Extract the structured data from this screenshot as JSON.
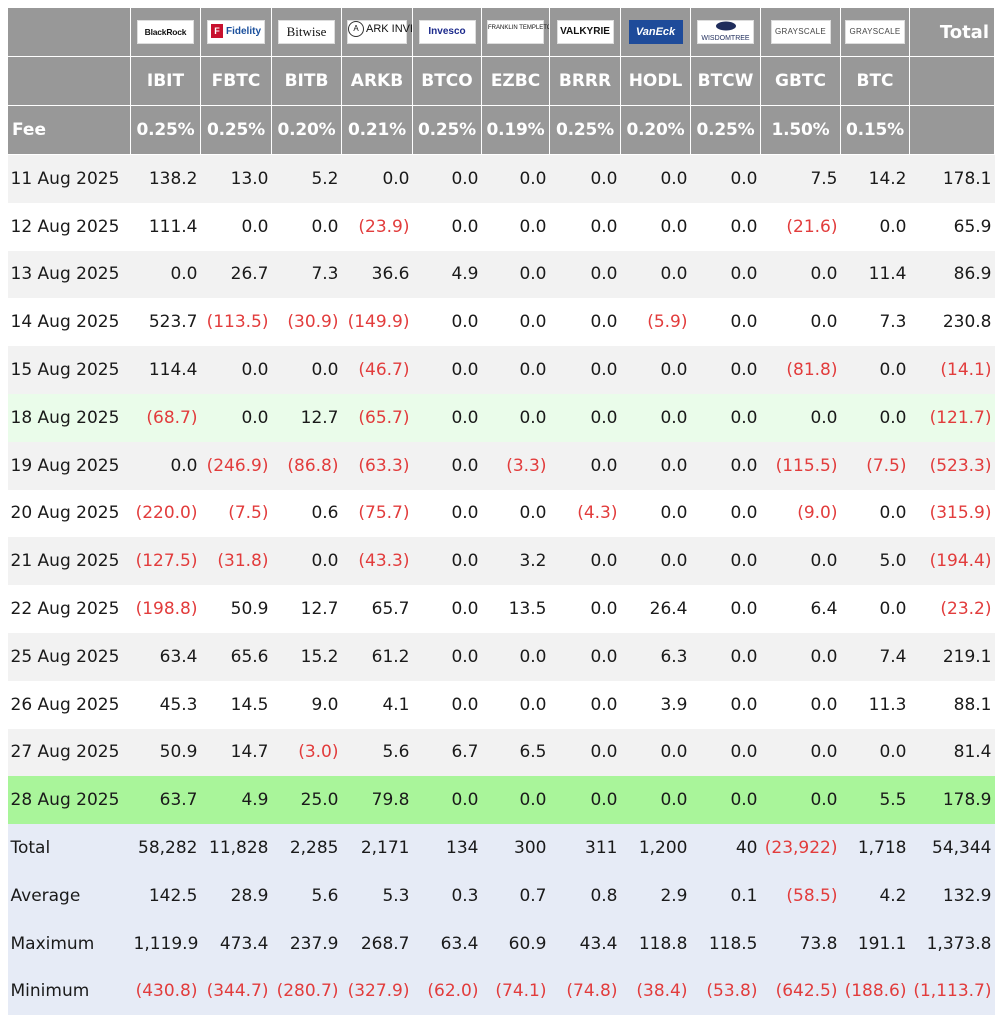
{
  "header": {
    "logos": [
      {
        "name": "BlackRock",
        "icon": "blackrock-logo"
      },
      {
        "name": "Fidelity",
        "icon": "fidelity-logo"
      },
      {
        "name": "Bitwise",
        "icon": "bitwise-logo"
      },
      {
        "name": "ARK INVEST",
        "icon": "ark-invest-logo"
      },
      {
        "name": "Invesco",
        "icon": "invesco-logo"
      },
      {
        "name": "FRANKLIN TEMPLETON",
        "icon": "franklin-templeton-logo"
      },
      {
        "name": "VALKYRIE",
        "icon": "valkyrie-logo"
      },
      {
        "name": "VanEck",
        "icon": "vaneck-logo"
      },
      {
        "name": "WISDOMTREE",
        "icon": "wisdomtree-logo"
      },
      {
        "name": "GRAYSCALE",
        "icon": "grayscale-logo"
      },
      {
        "name": "GRAYSCALE",
        "icon": "grayscale-logo"
      }
    ],
    "total_label": "Total",
    "tickers": [
      "IBIT",
      "FBTC",
      "BITB",
      "ARKB",
      "BTCO",
      "EZBC",
      "BRRR",
      "HODL",
      "BTCW",
      "GBTC",
      "BTC"
    ],
    "fee_label": "Fee",
    "fees": [
      "0.25%",
      "0.25%",
      "0.20%",
      "0.21%",
      "0.25%",
      "0.19%",
      "0.25%",
      "0.20%",
      "0.25%",
      "1.50%",
      "0.15%"
    ]
  },
  "rows": [
    {
      "date": "11 Aug 2025",
      "values": [
        "138.2",
        "13.0",
        "5.2",
        "0.0",
        "0.0",
        "0.0",
        "0.0",
        "0.0",
        "0.0",
        "7.5",
        "14.2"
      ],
      "total": "178.1"
    },
    {
      "date": "12 Aug 2025",
      "values": [
        "111.4",
        "0.0",
        "0.0",
        "(23.9)",
        "0.0",
        "0.0",
        "0.0",
        "0.0",
        "0.0",
        "(21.6)",
        "0.0"
      ],
      "total": "65.9"
    },
    {
      "date": "13 Aug 2025",
      "values": [
        "0.0",
        "26.7",
        "7.3",
        "36.6",
        "4.9",
        "0.0",
        "0.0",
        "0.0",
        "0.0",
        "0.0",
        "11.4"
      ],
      "total": "86.9"
    },
    {
      "date": "14 Aug 2025",
      "values": [
        "523.7",
        "(113.5)",
        "(30.9)",
        "(149.9)",
        "0.0",
        "0.0",
        "0.0",
        "(5.9)",
        "0.0",
        "0.0",
        "7.3"
      ],
      "total": "230.8"
    },
    {
      "date": "15 Aug 2025",
      "values": [
        "114.4",
        "0.0",
        "0.0",
        "(46.7)",
        "0.0",
        "0.0",
        "0.0",
        "0.0",
        "0.0",
        "(81.8)",
        "0.0"
      ],
      "total": "(14.1)"
    },
    {
      "date": "18 Aug 2025",
      "values": [
        "(68.7)",
        "0.0",
        "12.7",
        "(65.7)",
        "0.0",
        "0.0",
        "0.0",
        "0.0",
        "0.0",
        "0.0",
        "0.0"
      ],
      "total": "(121.7)"
    },
    {
      "date": "19 Aug 2025",
      "values": [
        "0.0",
        "(246.9)",
        "(86.8)",
        "(63.3)",
        "0.0",
        "(3.3)",
        "0.0",
        "0.0",
        "0.0",
        "(115.5)",
        "(7.5)"
      ],
      "total": "(523.3)"
    },
    {
      "date": "20 Aug 2025",
      "values": [
        "(220.0)",
        "(7.5)",
        "0.6",
        "(75.7)",
        "0.0",
        "0.0",
        "(4.3)",
        "0.0",
        "0.0",
        "(9.0)",
        "0.0"
      ],
      "total": "(315.9)"
    },
    {
      "date": "21 Aug 2025",
      "values": [
        "(127.5)",
        "(31.8)",
        "0.0",
        "(43.3)",
        "0.0",
        "3.2",
        "0.0",
        "0.0",
        "0.0",
        "0.0",
        "5.0"
      ],
      "total": "(194.4)"
    },
    {
      "date": "22 Aug 2025",
      "values": [
        "(198.8)",
        "50.9",
        "12.7",
        "65.7",
        "0.0",
        "13.5",
        "0.0",
        "26.4",
        "0.0",
        "6.4",
        "0.0"
      ],
      "total": "(23.2)"
    },
    {
      "date": "25 Aug 2025",
      "values": [
        "63.4",
        "65.6",
        "15.2",
        "61.2",
        "0.0",
        "0.0",
        "0.0",
        "6.3",
        "0.0",
        "0.0",
        "7.4"
      ],
      "total": "219.1"
    },
    {
      "date": "26 Aug 2025",
      "values": [
        "45.3",
        "14.5",
        "9.0",
        "4.1",
        "0.0",
        "0.0",
        "0.0",
        "3.9",
        "0.0",
        "0.0",
        "11.3"
      ],
      "total": "88.1"
    },
    {
      "date": "27 Aug 2025",
      "values": [
        "50.9",
        "14.7",
        "(3.0)",
        "5.6",
        "6.7",
        "6.5",
        "0.0",
        "0.0",
        "0.0",
        "0.0",
        "0.0"
      ],
      "total": "81.4"
    },
    {
      "date": "28 Aug 2025",
      "values": [
        "63.7",
        "4.9",
        "25.0",
        "79.8",
        "0.0",
        "0.0",
        "0.0",
        "0.0",
        "0.0",
        "0.0",
        "5.5"
      ],
      "total": "178.9"
    }
  ],
  "summary": [
    {
      "label": "Total",
      "values": [
        "58,282",
        "11,828",
        "2,285",
        "2,171",
        "134",
        "300",
        "311",
        "1,200",
        "40",
        "(23,922)",
        "1,718"
      ],
      "total": "54,344"
    },
    {
      "label": "Average",
      "values": [
        "142.5",
        "28.9",
        "5.6",
        "5.3",
        "0.3",
        "0.7",
        "0.8",
        "2.9",
        "0.1",
        "(58.5)",
        "4.2"
      ],
      "total": "132.9"
    },
    {
      "label": "Maximum",
      "values": [
        "1,119.9",
        "473.4",
        "237.9",
        "268.7",
        "63.4",
        "60.9",
        "43.4",
        "118.8",
        "118.5",
        "73.8",
        "191.1"
      ],
      "total": "1,373.8"
    },
    {
      "label": "Minimum",
      "values": [
        "(430.8)",
        "(344.7)",
        "(280.7)",
        "(327.9)",
        "(62.0)",
        "(74.1)",
        "(74.8)",
        "(38.4)",
        "(53.8)",
        "(642.5)",
        "(188.6)"
      ],
      "total": "(1,113.7)"
    }
  ],
  "colors": {
    "header_bg": "#989898",
    "row_alt": "#f2f2f2",
    "row_highlight_light_green": "#eafcea",
    "row_highlight_green": "#a9f59a",
    "summary_bg": "#e6ebf6",
    "negative_text": "#e23c3c"
  },
  "highlights": {
    "light_green_date": "18 Aug 2025",
    "bright_green_date": "28 Aug 2025"
  }
}
